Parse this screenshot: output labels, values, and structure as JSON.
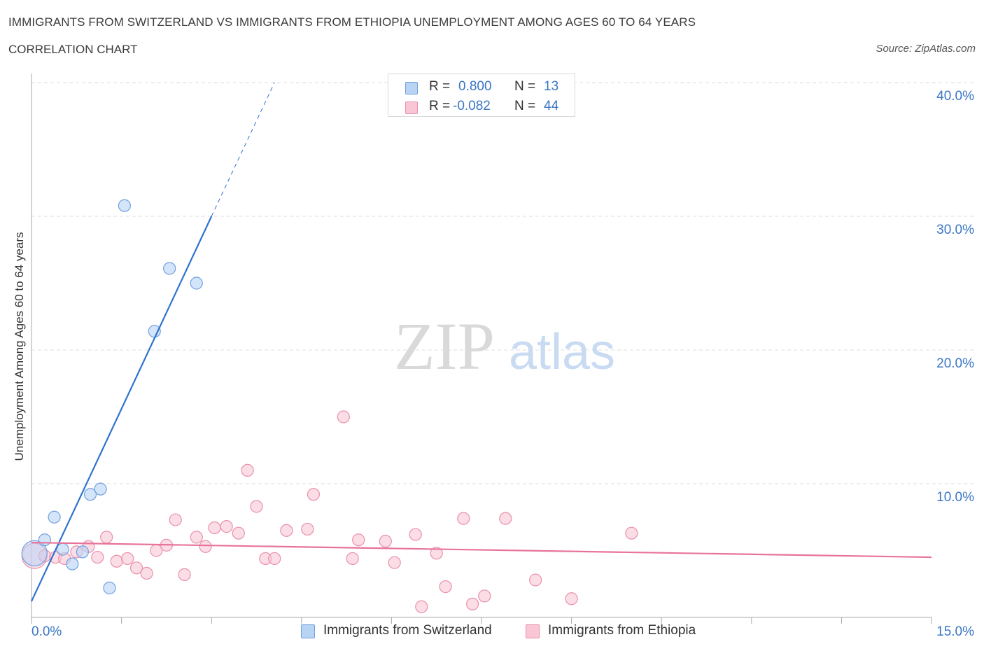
{
  "header": {
    "title": "IMMIGRANTS FROM SWITZERLAND VS IMMIGRANTS FROM ETHIOPIA UNEMPLOYMENT AMONG AGES 60 TO 64 YEARS",
    "subtitle": "CORRELATION CHART",
    "source": "Source: ZipAtlas.com"
  },
  "watermark": {
    "zip": "ZIP",
    "atlas": "atlas"
  },
  "legend": {
    "r_label": "R =",
    "n_label": "N =",
    "rows": [
      {
        "name": "Immigrants from Switzerland",
        "r": "0.800",
        "n": "13",
        "fill": "#b9d3f5",
        "stroke": "#6fa0e0"
      },
      {
        "name": "Immigrants from Ethiopia",
        "r": "-0.082",
        "n": "44",
        "fill": "#f8c6d5",
        "stroke": "#e990ad"
      }
    ]
  },
  "colors": {
    "blue_point_fill": "#b9d3f5",
    "blue_point_stroke": "#6fa0e0",
    "blue_line": "#2f72d0",
    "pink_point_fill": "#f8c6d5",
    "pink_point_stroke": "#e990ad",
    "pink_line": "#e8739a",
    "axis_text": "#3a76c4",
    "grid": "#dddddd"
  },
  "chart_data": {
    "type": "scatter",
    "title": "IMMIGRANTS FROM SWITZERLAND VS IMMIGRANTS FROM ETHIOPIA UNEMPLOYMENT AMONG AGES 60 TO 64 YEARS",
    "xlabel": "",
    "ylabel": "Unemployment Among Ages 60 to 64 years",
    "xlim": [
      0,
      15
    ],
    "ylim": [
      0,
      40
    ],
    "x_tick_labels": [
      "0.0%",
      "15.0%"
    ],
    "y_ticks": [
      10,
      20,
      30,
      40
    ],
    "y_tick_labels": [
      "10.0%",
      "20.0%",
      "30.0%",
      "40.0%"
    ],
    "grid": true,
    "series": [
      {
        "name": "Immigrants from Switzerland",
        "points": [
          {
            "x": 0.05,
            "y": 4.8,
            "big": true
          },
          {
            "x": 0.22,
            "y": 5.8
          },
          {
            "x": 0.38,
            "y": 7.5
          },
          {
            "x": 0.52,
            "y": 5.1
          },
          {
            "x": 0.68,
            "y": 4.0
          },
          {
            "x": 0.85,
            "y": 4.9
          },
          {
            "x": 0.98,
            "y": 9.2
          },
          {
            "x": 1.15,
            "y": 9.6
          },
          {
            "x": 1.3,
            "y": 2.2
          },
          {
            "x": 1.55,
            "y": 30.8
          },
          {
            "x": 2.05,
            "y": 21.4
          },
          {
            "x": 2.3,
            "y": 26.1
          },
          {
            "x": 2.75,
            "y": 25.0
          }
        ],
        "trend": {
          "x0": 0.0,
          "y0": 1.2,
          "x1": 3.0,
          "y1": 30.0,
          "dash_to_x": 4.05,
          "dash_to_y": 40.0
        }
      },
      {
        "name": "Immigrants from Ethiopia",
        "points": [
          {
            "x": 0.05,
            "y": 4.6,
            "big": true
          },
          {
            "x": 0.22,
            "y": 4.6
          },
          {
            "x": 0.4,
            "y": 4.5
          },
          {
            "x": 0.55,
            "y": 4.4
          },
          {
            "x": 0.75,
            "y": 4.9
          },
          {
            "x": 0.95,
            "y": 5.3
          },
          {
            "x": 1.1,
            "y": 4.5
          },
          {
            "x": 1.25,
            "y": 6.0
          },
          {
            "x": 1.42,
            "y": 4.2
          },
          {
            "x": 1.6,
            "y": 4.4
          },
          {
            "x": 1.75,
            "y": 3.7
          },
          {
            "x": 1.92,
            "y": 3.3
          },
          {
            "x": 2.08,
            "y": 5.0
          },
          {
            "x": 2.25,
            "y": 5.4
          },
          {
            "x": 2.4,
            "y": 7.3
          },
          {
            "x": 2.55,
            "y": 3.2
          },
          {
            "x": 2.75,
            "y": 6.0
          },
          {
            "x": 2.9,
            "y": 5.3
          },
          {
            "x": 3.05,
            "y": 6.7
          },
          {
            "x": 3.25,
            "y": 6.8
          },
          {
            "x": 3.45,
            "y": 6.3
          },
          {
            "x": 3.6,
            "y": 11.0
          },
          {
            "x": 3.75,
            "y": 8.3
          },
          {
            "x": 3.9,
            "y": 4.4
          },
          {
            "x": 4.05,
            "y": 4.4
          },
          {
            "x": 4.25,
            "y": 6.5
          },
          {
            "x": 4.6,
            "y": 6.6
          },
          {
            "x": 4.7,
            "y": 9.2
          },
          {
            "x": 5.2,
            "y": 15.0
          },
          {
            "x": 5.35,
            "y": 4.4
          },
          {
            "x": 5.45,
            "y": 5.8
          },
          {
            "x": 5.9,
            "y": 5.7
          },
          {
            "x": 6.05,
            "y": 4.1
          },
          {
            "x": 6.4,
            "y": 6.2
          },
          {
            "x": 6.5,
            "y": 0.8
          },
          {
            "x": 6.75,
            "y": 4.8
          },
          {
            "x": 6.9,
            "y": 2.3
          },
          {
            "x": 7.2,
            "y": 7.4
          },
          {
            "x": 7.35,
            "y": 1.0
          },
          {
            "x": 7.55,
            "y": 1.6
          },
          {
            "x": 7.9,
            "y": 7.4
          },
          {
            "x": 8.4,
            "y": 2.8
          },
          {
            "x": 9.0,
            "y": 1.4
          },
          {
            "x": 10.0,
            "y": 6.3
          }
        ],
        "trend": {
          "x0": 0.0,
          "y0": 5.6,
          "x1": 15.0,
          "y1": 4.5
        }
      }
    ]
  }
}
